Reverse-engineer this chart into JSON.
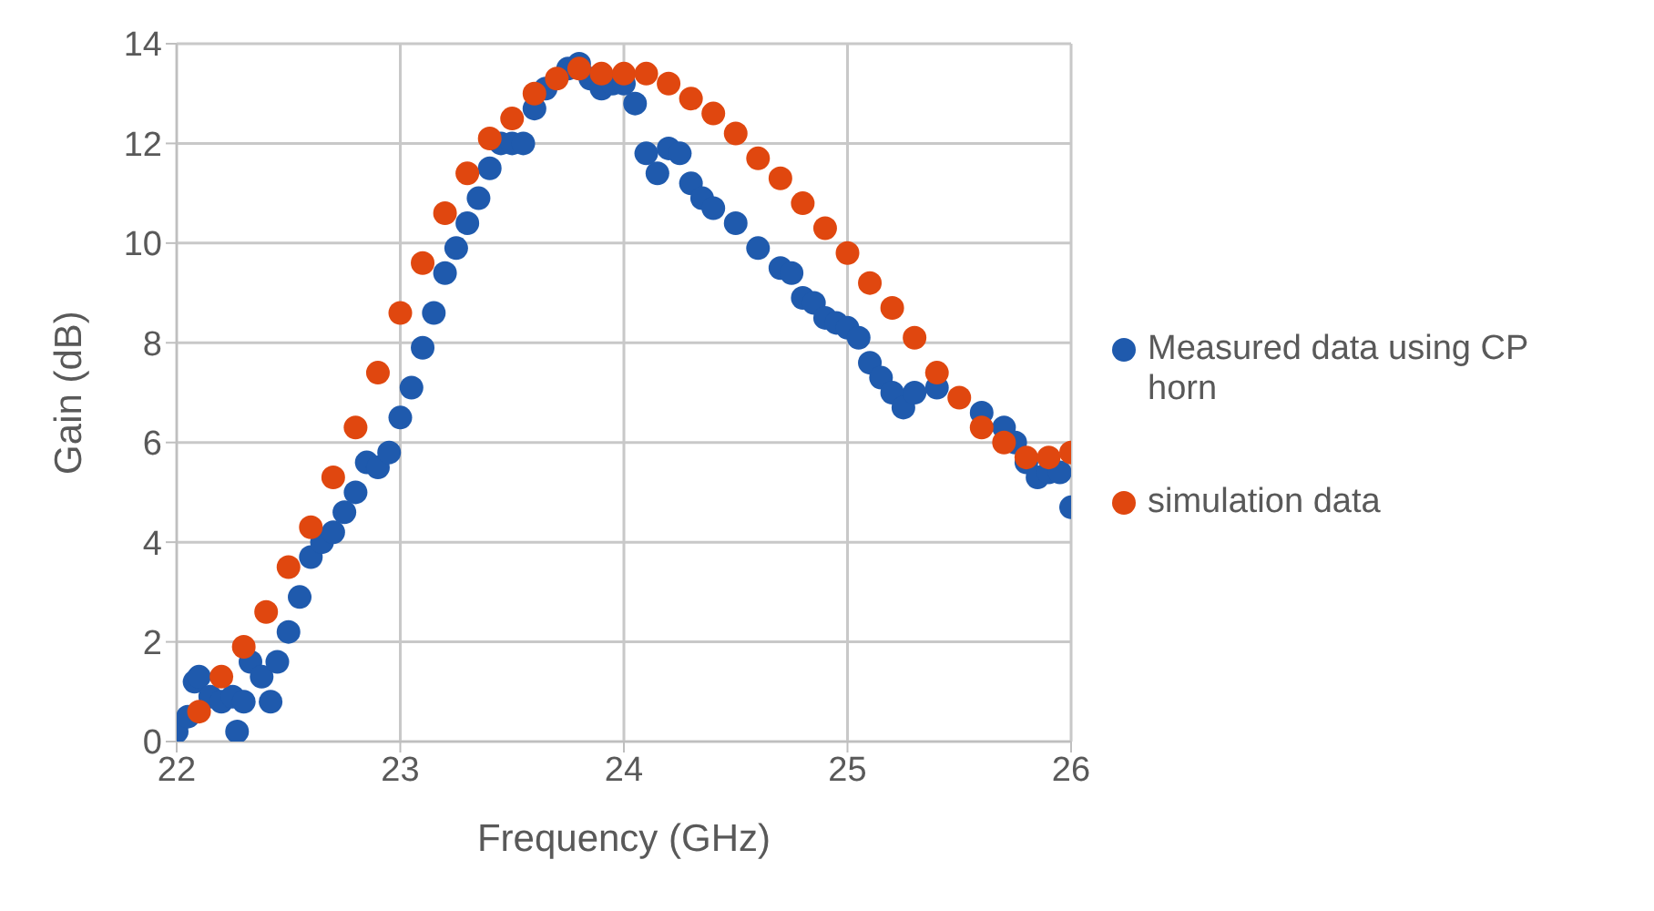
{
  "chart_data": {
    "type": "scatter",
    "xlabel": "Frequency (GHz)",
    "ylabel": "Gain (dB)",
    "xlim": [
      22,
      26
    ],
    "xticks": [
      22,
      23,
      24,
      25,
      26
    ],
    "ylim": [
      0,
      14
    ],
    "yticks": [
      0,
      2,
      4,
      6,
      8,
      10,
      12,
      14
    ],
    "grid": true,
    "legend": "right",
    "marker": "circle",
    "series": [
      {
        "name": "Measured data using CP horn",
        "color": "#1f5aad",
        "x": [
          22.0,
          22.05,
          22.08,
          22.1,
          22.15,
          22.2,
          22.25,
          22.27,
          22.3,
          22.33,
          22.38,
          22.42,
          22.45,
          22.5,
          22.55,
          22.6,
          22.65,
          22.7,
          22.75,
          22.8,
          22.85,
          22.9,
          22.95,
          23.0,
          23.05,
          23.1,
          23.15,
          23.2,
          23.25,
          23.3,
          23.35,
          23.4,
          23.45,
          23.5,
          23.55,
          23.6,
          23.65,
          23.75,
          23.8,
          23.85,
          23.9,
          23.95,
          24.0,
          24.05,
          24.1,
          24.15,
          24.2,
          24.25,
          24.3,
          24.35,
          24.4,
          24.5,
          24.6,
          24.7,
          24.75,
          24.8,
          24.85,
          24.9,
          24.95,
          25.0,
          25.05,
          25.1,
          25.15,
          25.2,
          25.25,
          25.3,
          25.4,
          25.5,
          25.6,
          25.7,
          25.75,
          25.8,
          25.85,
          25.9,
          25.95,
          26.0
        ],
        "values": [
          0.2,
          0.5,
          1.2,
          1.3,
          0.9,
          0.8,
          0.9,
          0.2,
          0.8,
          1.6,
          1.3,
          0.8,
          1.6,
          2.2,
          2.9,
          3.7,
          4.0,
          4.2,
          4.6,
          5.0,
          5.6,
          5.5,
          5.8,
          6.5,
          7.1,
          7.9,
          8.6,
          9.4,
          9.9,
          10.4,
          10.9,
          11.5,
          12.0,
          12.0,
          12.0,
          12.7,
          13.1,
          13.5,
          13.6,
          13.3,
          13.1,
          13.2,
          13.2,
          12.8,
          11.8,
          11.4,
          11.9,
          11.8,
          11.2,
          10.9,
          10.7,
          10.4,
          9.9,
          9.5,
          9.4,
          8.9,
          8.8,
          8.5,
          8.4,
          8.3,
          8.1,
          7.6,
          7.3,
          7.0,
          6.7,
          7.0,
          7.1,
          null,
          6.6,
          6.3,
          6.0,
          5.6,
          5.3,
          5.4,
          5.4,
          4.7
        ]
      },
      {
        "name": "simulation data",
        "color": "#e0470f",
        "x": [
          22.1,
          22.2,
          22.3,
          22.4,
          22.5,
          22.6,
          22.7,
          22.8,
          22.9,
          23.0,
          23.1,
          23.2,
          23.3,
          23.4,
          23.5,
          23.6,
          23.7,
          23.8,
          23.9,
          24.0,
          24.1,
          24.2,
          24.3,
          24.4,
          24.5,
          24.6,
          24.7,
          24.8,
          24.9,
          25.0,
          25.1,
          25.2,
          25.3,
          25.4,
          25.5,
          25.6,
          25.7,
          25.8,
          25.9,
          26.0
        ],
        "values": [
          0.6,
          1.3,
          1.9,
          2.6,
          3.5,
          4.3,
          5.3,
          6.3,
          7.4,
          8.6,
          9.6,
          10.6,
          11.4,
          12.1,
          12.5,
          13.0,
          13.3,
          13.5,
          13.4,
          13.4,
          13.4,
          13.2,
          12.9,
          12.6,
          12.2,
          11.7,
          11.3,
          10.8,
          10.3,
          9.8,
          9.2,
          8.7,
          8.1,
          7.4,
          6.9,
          6.3,
          6.0,
          5.7,
          5.7,
          5.8
        ]
      }
    ]
  }
}
